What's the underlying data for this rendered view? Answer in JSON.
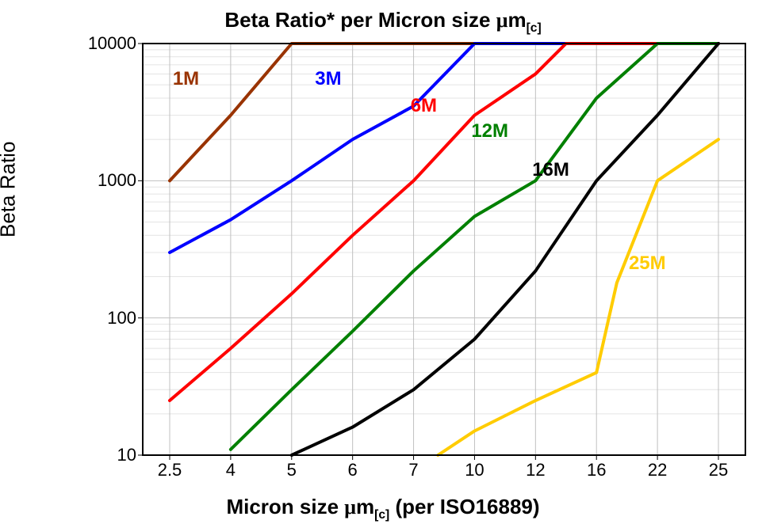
{
  "chart": {
    "title_pre": "Beta Ratio* per Micron size ",
    "title_mu": "μ",
    "title_m": "m",
    "title_sub": "[c]",
    "y_axis_title": "Beta Ratio",
    "x_axis_title_pre": "Micron size ",
    "x_axis_title_mu": "μ",
    "x_axis_title_m": "m",
    "x_axis_title_sub": "[c]",
    "x_axis_title_post": " (per ISO16889)",
    "background_color": "#ffffff",
    "grid_color_major": "#c0c0c0",
    "grid_color_minor": "#e4e4e4",
    "border_color": "#000000",
    "title_fontsize": 26,
    "label_fontsize": 26,
    "tick_fontsize": 22,
    "x_ticks": [
      2.5,
      4,
      5,
      6,
      7,
      10,
      12,
      16,
      22,
      25
    ],
    "x_tick_labels": [
      "2.5",
      "4",
      "5",
      "6",
      "7",
      "10",
      "12",
      "16",
      "22",
      "25"
    ],
    "y_scale": "log",
    "y_ticks": [
      10,
      100,
      1000,
      10000
    ],
    "y_tick_labels": [
      "10",
      "100",
      "1000",
      "10000"
    ],
    "ylim": [
      10,
      10000
    ],
    "line_width": 4,
    "series": [
      {
        "name": "1M",
        "label": "1M",
        "color": "#993300",
        "label_xy": [
          2.9,
          5500
        ],
        "points": [
          [
            2.5,
            1000
          ],
          [
            4,
            3000
          ],
          [
            5,
            10000
          ],
          [
            25,
            10000
          ]
        ]
      },
      {
        "name": "3M",
        "label": "3M",
        "color": "#0000ff",
        "label_xy": [
          5.6,
          5500
        ],
        "points": [
          [
            2.5,
            300
          ],
          [
            4,
            520
          ],
          [
            5,
            1000
          ],
          [
            6,
            2000
          ],
          [
            7,
            3500
          ],
          [
            10,
            10000
          ],
          [
            25,
            10000
          ]
        ]
      },
      {
        "name": "6M",
        "label": "6M",
        "color": "#ff0000",
        "label_xy": [
          7.5,
          3500
        ],
        "points": [
          [
            2.5,
            25
          ],
          [
            4,
            60
          ],
          [
            5,
            150
          ],
          [
            6,
            400
          ],
          [
            7,
            1000
          ],
          [
            10,
            3000
          ],
          [
            12,
            6000
          ],
          [
            14,
            10000
          ],
          [
            25,
            10000
          ]
        ]
      },
      {
        "name": "12M",
        "label": "12M",
        "color": "#008000",
        "label_xy": [
          10.5,
          2300
        ],
        "points": [
          [
            4,
            11
          ],
          [
            5,
            30
          ],
          [
            6,
            80
          ],
          [
            7,
            220
          ],
          [
            10,
            550
          ],
          [
            12,
            1000
          ],
          [
            16,
            4000
          ],
          [
            22,
            10000
          ],
          [
            25,
            10000
          ]
        ]
      },
      {
        "name": "16M",
        "label": "16M",
        "color": "#000000",
        "label_xy": [
          13,
          1200
        ],
        "points": [
          [
            5,
            10
          ],
          [
            6,
            16
          ],
          [
            7,
            30
          ],
          [
            10,
            70
          ],
          [
            12,
            220
          ],
          [
            16,
            1000
          ],
          [
            22,
            3000
          ],
          [
            25,
            10000
          ]
        ]
      },
      {
        "name": "25M",
        "label": "25M",
        "color": "#ffcc00",
        "label_xy": [
          21,
          250
        ],
        "points": [
          [
            8.2,
            10
          ],
          [
            10,
            15
          ],
          [
            12,
            25
          ],
          [
            16,
            40
          ],
          [
            18,
            180
          ],
          [
            22,
            1000
          ],
          [
            25,
            2000
          ]
        ]
      }
    ]
  }
}
